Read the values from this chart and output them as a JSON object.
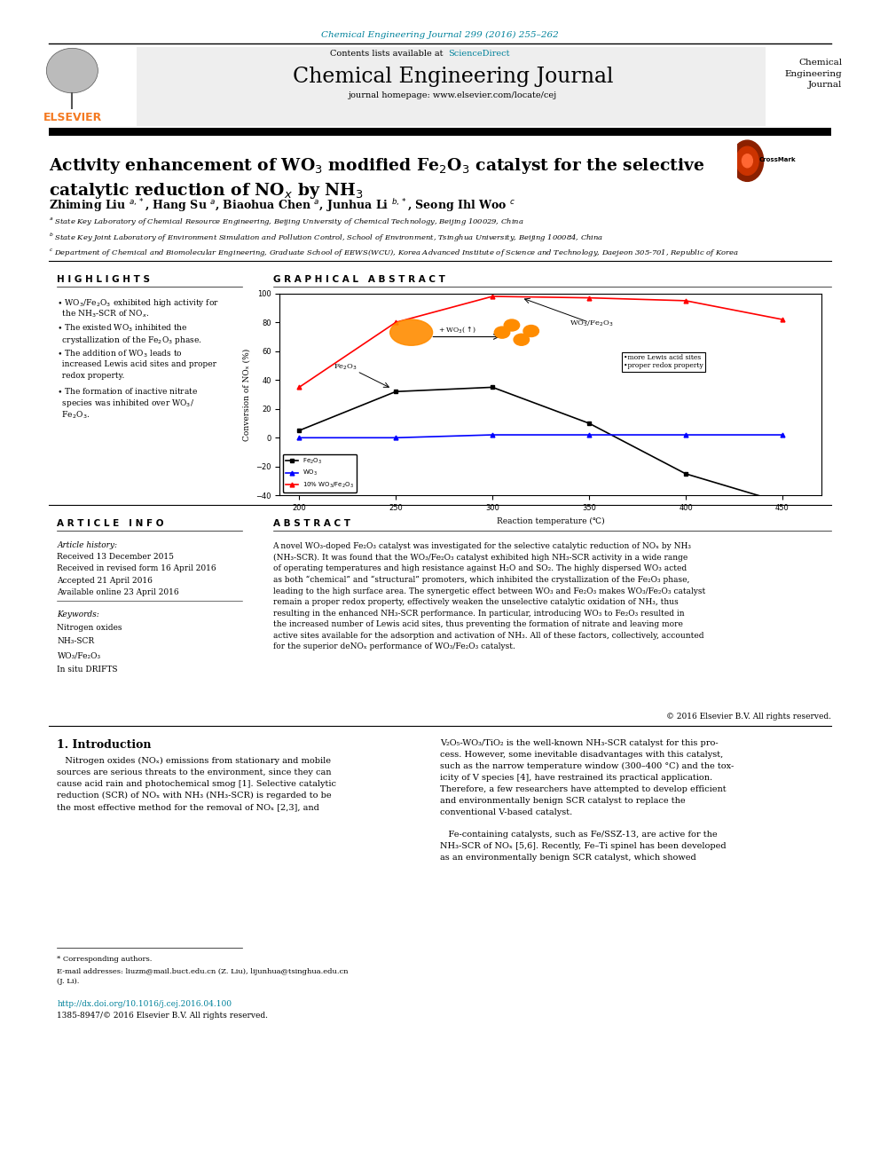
{
  "journal_ref": "Chemical Engineering Journal 299 (2016) 255–262",
  "journal_ref_color": "#00829B",
  "contents_text": "Contents lists available at ",
  "sciencedirect_text": "ScienceDirect",
  "sciencedirect_color": "#00829B",
  "journal_name": "Chemical Engineering Journal",
  "journal_homepage": "journal homepage: www.elsevier.com/locate/cej",
  "journal_right": "Chemical\nEngineering\nJournal",
  "elsevier_color": "#F47920",
  "title_line1": "Activity enhancement of WO₃ modified Fe₂O₃ catalyst for the selective",
  "title_line2": "catalytic reduction of NOₓ by NH₃",
  "authors_text": "Zhiming Liu ᵃ,*, Hang Su ᵃ, Biaohua Chen ᵃ, Junhua Li ᵇ,*, Seong Ihl Woo ᶜ",
  "affil_a": "ᵃ State Key Laboratory of Chemical Resource Engineering, Beijing University of Chemical Technology, Beijing 100029, China",
  "affil_b": "ᵇ State Key Joint Laboratory of Environment Simulation and Pollution Control, School of Environment, Tsinghua University, Beijing 100084, China",
  "affil_c": "ᶜ Department of Chemical and Biomolecular Engineering, Graduate School of EEWS(WCU), Korea Advanced Institute of Science and Technology, Daejeon 305-701, Republic of Korea",
  "highlights_title": "H I G H L I G H T S",
  "graphical_abstract_title": "G R A P H I C A L   A B S T R A C T",
  "article_info_title": "A R T I C L E   I N F O",
  "article_history_label": "Article history:",
  "received": "Received 13 December 2015",
  "revised": "Received in revised form 16 April 2016",
  "accepted": "Accepted 21 April 2016",
  "online": "Available online 23 April 2016",
  "keywords_label": "Keywords:",
  "keywords": [
    "Nitrogen oxides",
    "NH₃-SCR",
    "WO₃/Fe₂O₃",
    "In situ DRIFTS"
  ],
  "abstract_title": "A B S T R A C T",
  "abstract_text": "A novel WO₃-doped Fe₂O₃ catalyst was investigated for the selective catalytic reduction of NOₓ by NH₃\n(NH₃-SCR). It was found that the WO₃/Fe₂O₃ catalyst exhibited high NH₃-SCR activity in a wide range\nof operating temperatures and high resistance against H₂O and SO₂. The highly dispersed WO₃ acted\nas both “chemical” and “structural” promoters, which inhibited the crystallization of the Fe₂O₃ phase,\nleading to the high surface area. The synergetic effect between WO₃ and Fe₂O₃ makes WO₃/Fe₂O₃ catalyst\nremain a proper redox property, effectively weaken the unselective catalytic oxidation of NH₃, thus\nresulting in the enhanced NH₃-SCR performance. In particular, introducing WO₃ to Fe₂O₃ resulted in\nthe increased number of Lewis acid sites, thus preventing the formation of nitrate and leaving more\nactive sites available for the adsorption and activation of NH₃. All of these factors, collectively, accounted\nfor the superior deNOₓ performance of WO₃/Fe₂O₃ catalyst.",
  "copyright": "© 2016 Elsevier B.V. All rights reserved.",
  "intro_title": "1. Introduction",
  "intro_text_left": "   Nitrogen oxides (NOₓ) emissions from stationary and mobile\nsources are serious threats to the environment, since they can\ncause acid rain and photochemical smog [1]. Selective catalytic\nreduction (SCR) of NOₓ with NH₃ (NH₃-SCR) is regarded to be\nthe most effective method for the removal of NOₓ [2,3], and",
  "intro_text_right": "V₂O₅-WO₃/TiO₂ is the well-known NH₃-SCR catalyst for this pro-\ncess. However, some inevitable disadvantages with this catalyst,\nsuch as the narrow temperature window (300–400 °C) and the tox-\nicity of V species [4], have restrained its practical application.\nTherefore, a few researchers have attempted to develop efficient\nand environmentally benign SCR catalyst to replace the\nconventional V-based catalyst.\n\n   Fe-containing catalysts, such as Fe/SSZ-13, are active for the\nNH₃-SCR of NOₓ [5,6]. Recently, Fe–Ti spinel has been developed\nas an environmentally benign SCR catalyst, which showed",
  "footnote_star": "* Corresponding authors.",
  "footnote_email": "E-mail addresses: liuzm@mail.buct.edu.cn (Z. Liu), lijunhua@tsinghua.edu.cn\n(J. Li).",
  "doi": "http://dx.doi.org/10.1016/j.cej.2016.04.100",
  "doi_color": "#00829B",
  "issn": "1385-8947/© 2016 Elsevier B.V. All rights reserved.",
  "graph_temps": [
    200,
    250,
    300,
    350,
    400,
    450
  ],
  "graph_fe2o3_y": [
    5,
    32,
    35,
    10,
    -25,
    -45
  ],
  "graph_wo3_y": [
    0,
    0,
    2,
    2,
    2,
    2
  ],
  "graph_wo3fe2o3_y": [
    35,
    80,
    98,
    97,
    95,
    82
  ],
  "graph_ylim": [
    -40,
    100
  ],
  "graph_xlim": [
    190,
    470
  ],
  "graph_xlabel": "Reaction temperature (℃)",
  "graph_ylabel": "Conversion of NOₓ (%)",
  "annotation_box": "•more Lewis acid sites\n•proper redox property",
  "bg_color": "#FFFFFF"
}
